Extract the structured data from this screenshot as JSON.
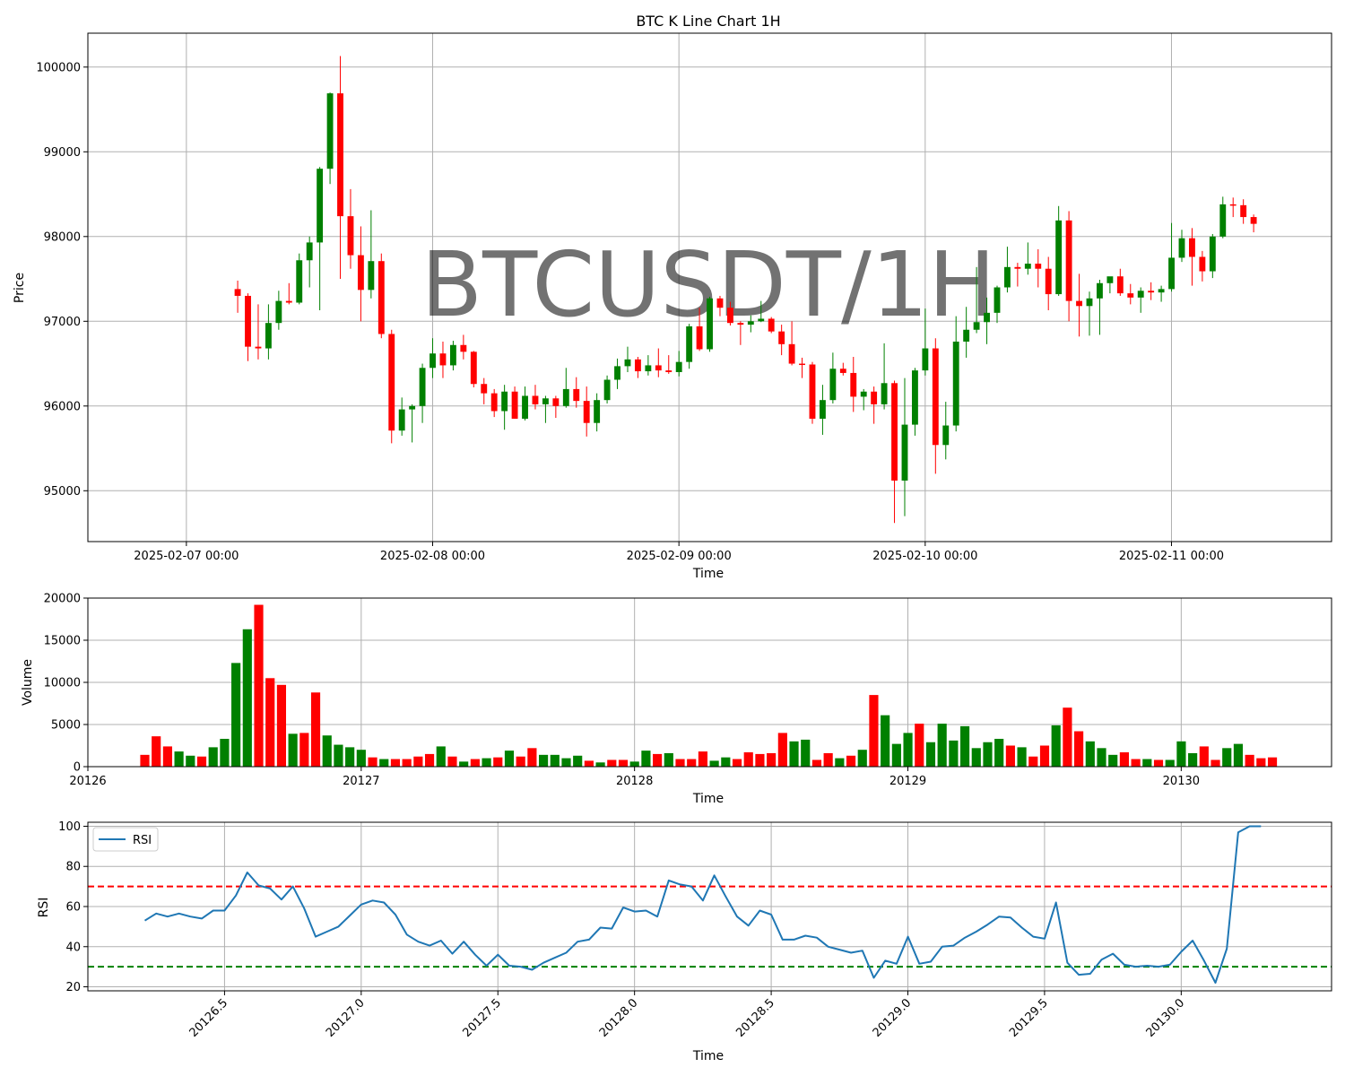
{
  "chart_data": [
    {
      "type": "candlestick",
      "title": "BTC K Line Chart 1H",
      "watermark": "BTCUSDT/1H",
      "xlabel": "Time",
      "ylabel": "Price",
      "xlim": [
        -0.4,
        4.65
      ],
      "ylim": [
        94400,
        100400
      ],
      "x_ticks": [
        {
          "v": 0,
          "label": "2025-02-07 00:00"
        },
        {
          "v": 1,
          "label": "2025-02-08 00:00"
        },
        {
          "v": 2,
          "label": "2025-02-09 00:00"
        },
        {
          "v": 3,
          "label": "2025-02-10 00:00"
        },
        {
          "v": 4,
          "label": "2025-02-11 00:00"
        }
      ],
      "y_ticks": [
        95000,
        96000,
        97000,
        98000,
        99000,
        100000
      ],
      "grid": true,
      "start_x": 0.2083,
      "step": 0.04167,
      "colors": {
        "up": "#008000",
        "down": "#ff0000"
      },
      "ohlc": [
        [
          97380,
          97480,
          97100,
          97300
        ],
        [
          97300,
          97330,
          96530,
          96700
        ],
        [
          96700,
          97200,
          96550,
          96680
        ],
        [
          96680,
          97200,
          96550,
          96980
        ],
        [
          96980,
          97360,
          96900,
          97240
        ],
        [
          97240,
          97450,
          97200,
          97220
        ],
        [
          97220,
          97800,
          97200,
          97720
        ],
        [
          97720,
          98000,
          97400,
          97930
        ],
        [
          97930,
          98820,
          97130,
          98800
        ],
        [
          98800,
          99700,
          98620,
          99690
        ],
        [
          99690,
          100130,
          97500,
          98240
        ],
        [
          98240,
          98560,
          97620,
          97780
        ],
        [
          97780,
          98120,
          97000,
          97370
        ],
        [
          97370,
          98310,
          97270,
          97710
        ],
        [
          97710,
          97800,
          96800,
          96850
        ],
        [
          96850,
          96900,
          95560,
          95710
        ],
        [
          95710,
          96100,
          95650,
          95960
        ],
        [
          95960,
          96020,
          95570,
          96000
        ],
        [
          96000,
          96500,
          95800,
          96450
        ],
        [
          96450,
          96800,
          96330,
          96620
        ],
        [
          96620,
          96760,
          96330,
          96480
        ],
        [
          96480,
          96770,
          96420,
          96720
        ],
        [
          96720,
          96840,
          96550,
          96640
        ],
        [
          96640,
          96650,
          96220,
          96260
        ],
        [
          96260,
          96330,
          96020,
          96150
        ],
        [
          96150,
          96200,
          95870,
          95940
        ],
        [
          95940,
          96250,
          95720,
          96170
        ],
        [
          96170,
          96230,
          95850,
          95850
        ],
        [
          95850,
          96230,
          95830,
          96120
        ],
        [
          96120,
          96250,
          95960,
          96020
        ],
        [
          96020,
          96120,
          95800,
          96090
        ],
        [
          96090,
          96120,
          95860,
          96000
        ],
        [
          96000,
          96450,
          95980,
          96200
        ],
        [
          96200,
          96340,
          95980,
          96060
        ],
        [
          96060,
          96230,
          95640,
          95800
        ],
        [
          95800,
          96150,
          95700,
          96070
        ],
        [
          96070,
          96360,
          96030,
          96310
        ],
        [
          96310,
          96560,
          96200,
          96470
        ],
        [
          96470,
          96700,
          96400,
          96550
        ],
        [
          96550,
          96580,
          96330,
          96410
        ],
        [
          96410,
          96600,
          96360,
          96480
        ],
        [
          96480,
          96680,
          96340,
          96420
        ],
        [
          96420,
          96600,
          96380,
          96400
        ],
        [
          96400,
          96650,
          96350,
          96520
        ],
        [
          96520,
          96970,
          96440,
          96940
        ],
        [
          96940,
          97160,
          96650,
          96670
        ],
        [
          96670,
          97290,
          96640,
          97270
        ],
        [
          97270,
          97300,
          97060,
          97160
        ],
        [
          97160,
          97230,
          96950,
          96980
        ],
        [
          96980,
          97000,
          96720,
          96960
        ],
        [
          96960,
          97070,
          96870,
          97000
        ],
        [
          97000,
          97240,
          96990,
          97030
        ],
        [
          97030,
          97050,
          96860,
          96880
        ],
        [
          96880,
          96960,
          96600,
          96730
        ],
        [
          96730,
          97000,
          96480,
          96500
        ],
        [
          96500,
          96570,
          96330,
          96490
        ],
        [
          96490,
          96520,
          95790,
          95850
        ],
        [
          95850,
          96250,
          95660,
          96070
        ],
        [
          96070,
          96630,
          96030,
          96440
        ],
        [
          96440,
          96510,
          96360,
          96390
        ],
        [
          96390,
          96580,
          95930,
          96110
        ],
        [
          96110,
          96200,
          95950,
          96170
        ],
        [
          96170,
          96230,
          95790,
          96020
        ],
        [
          96020,
          96740,
          95960,
          96270
        ],
        [
          96270,
          96300,
          94620,
          95120
        ],
        [
          95120,
          96330,
          94700,
          95780
        ],
        [
          95780,
          96450,
          95650,
          96420
        ],
        [
          96420,
          97150,
          96360,
          96680
        ],
        [
          96680,
          96800,
          95200,
          95540
        ],
        [
          95540,
          96050,
          95370,
          95770
        ],
        [
          95770,
          97060,
          95700,
          96760
        ],
        [
          96760,
          97170,
          96570,
          96900
        ],
        [
          96900,
          97640,
          96860,
          96990
        ],
        [
          96990,
          97280,
          96730,
          97100
        ],
        [
          97100,
          97420,
          96980,
          97400
        ],
        [
          97400,
          97880,
          97340,
          97640
        ],
        [
          97640,
          97690,
          97410,
          97620
        ],
        [
          97620,
          97930,
          97550,
          97680
        ],
        [
          97680,
          97850,
          97400,
          97620
        ],
        [
          97620,
          97760,
          97130,
          97320
        ],
        [
          97320,
          98360,
          97300,
          98190
        ],
        [
          98190,
          98300,
          97000,
          97240
        ],
        [
          97240,
          97560,
          96820,
          97180
        ],
        [
          97180,
          97350,
          96830,
          97270
        ],
        [
          97270,
          97490,
          96840,
          97450
        ],
        [
          97450,
          97510,
          97330,
          97530
        ],
        [
          97530,
          97620,
          97300,
          97330
        ],
        [
          97330,
          97440,
          97200,
          97280
        ],
        [
          97280,
          97400,
          97100,
          97360
        ],
        [
          97360,
          97460,
          97250,
          97340
        ],
        [
          97340,
          97420,
          97230,
          97380
        ],
        [
          97380,
          98160,
          97350,
          97750
        ],
        [
          97750,
          98080,
          97700,
          97980
        ],
        [
          97980,
          98100,
          97420,
          97760
        ],
        [
          97760,
          97830,
          97470,
          97590
        ],
        [
          97590,
          98030,
          97510,
          98000
        ],
        [
          98000,
          98470,
          97980,
          98380
        ],
        [
          98380,
          98460,
          98230,
          98370
        ],
        [
          98370,
          98440,
          98150,
          98230
        ],
        [
          98230,
          98260,
          98050,
          98150
        ]
      ]
    },
    {
      "type": "bar",
      "xlabel": "Time",
      "ylabel": "Volume",
      "xlim": [
        20126.0,
        20130.55
      ],
      "ylim": [
        0,
        20000
      ],
      "x_ticks": [
        20126,
        20127,
        20128,
        20129,
        20130
      ],
      "y_ticks": [
        0,
        5000,
        10000,
        15000,
        20000
      ],
      "grid": true,
      "start_x": 20126.2083,
      "step": 0.04167,
      "values": [
        1400,
        3600,
        2400,
        1800,
        1300,
        1200,
        2300,
        3300,
        12300,
        16300,
        19200,
        10500,
        9700,
        3900,
        4000,
        8800,
        3700,
        2600,
        2300,
        2000,
        1100,
        900,
        900,
        900,
        1200,
        1500,
        2400,
        1200,
        600,
        900,
        1000,
        1100,
        1900,
        1200,
        2200,
        1400,
        1400,
        1000,
        1300,
        700,
        500,
        800,
        800,
        600,
        1900,
        1500,
        1600,
        900,
        900,
        1800,
        700,
        1100,
        900,
        1700,
        1500,
        1600,
        4000,
        3000,
        3200,
        800,
        1600,
        1000,
        1300,
        2000,
        8500,
        6100,
        2700,
        4000,
        5100,
        2900,
        5100,
        3100,
        4800,
        2200,
        2900,
        3300,
        2500,
        2300,
        1200,
        2500,
        4900,
        7000,
        4200,
        3000,
        2200,
        1400,
        1700,
        900,
        900,
        800,
        800,
        3000,
        1600,
        2400,
        800,
        2200,
        2700,
        1400,
        1000,
        1100
      ]
    },
    {
      "type": "line",
      "xlabel": "Time",
      "ylabel": "RSI",
      "xlim": [
        20126.0,
        20130.55
      ],
      "ylim": [
        18,
        102
      ],
      "x_ticks": [
        {
          "v": 20126.5,
          "label": "20126.5"
        },
        {
          "v": 20127.0,
          "label": "20127.0"
        },
        {
          "v": 20127.5,
          "label": "20127.5"
        },
        {
          "v": 20128.0,
          "label": "20128.0"
        },
        {
          "v": 20128.5,
          "label": "20128.5"
        },
        {
          "v": 20129.0,
          "label": "20129.0"
        },
        {
          "v": 20129.5,
          "label": "20129.5"
        },
        {
          "v": 20130.0,
          "label": "20130.0"
        }
      ],
      "y_ticks": [
        20,
        40,
        60,
        80,
        100
      ],
      "grid": true,
      "legend": "top-left",
      "overbought": 70,
      "oversold": 30,
      "colors": {
        "line": "#1f77b4",
        "overbought": "#ff0000",
        "oversold": "#008000"
      },
      "start_x": 20126.2083,
      "step": 0.04167,
      "series": [
        {
          "name": "RSI",
          "values": [
            53,
            56.5,
            55,
            56.5,
            55,
            54,
            58,
            58,
            65.5,
            77,
            70.5,
            69,
            63.5,
            70,
            59,
            45,
            47.5,
            50,
            55.5,
            61,
            63,
            62,
            56,
            46,
            42.5,
            40.5,
            43,
            36.5,
            42.5,
            36,
            30.5,
            36,
            30.5,
            30,
            28.5,
            32,
            34.5,
            37,
            42.5,
            43.5,
            49.5,
            49,
            59.5,
            57.5,
            58,
            55,
            73,
            71,
            70,
            63,
            75.5,
            65,
            55,
            50.5,
            58,
            56,
            43.5,
            43.5,
            45.5,
            44.5,
            40,
            38.5,
            37,
            38,
            24.5,
            33,
            31.5,
            45,
            31.5,
            32.5,
            40,
            40.5,
            44.5,
            47.5,
            51,
            55,
            54.5,
            49.5,
            45,
            44,
            62,
            32,
            26,
            26.5,
            33.5,
            36.5,
            31,
            30,
            30.5,
            30,
            31,
            37.5,
            43,
            33,
            22,
            39,
            97,
            100,
            100
          ]
        }
      ]
    }
  ]
}
